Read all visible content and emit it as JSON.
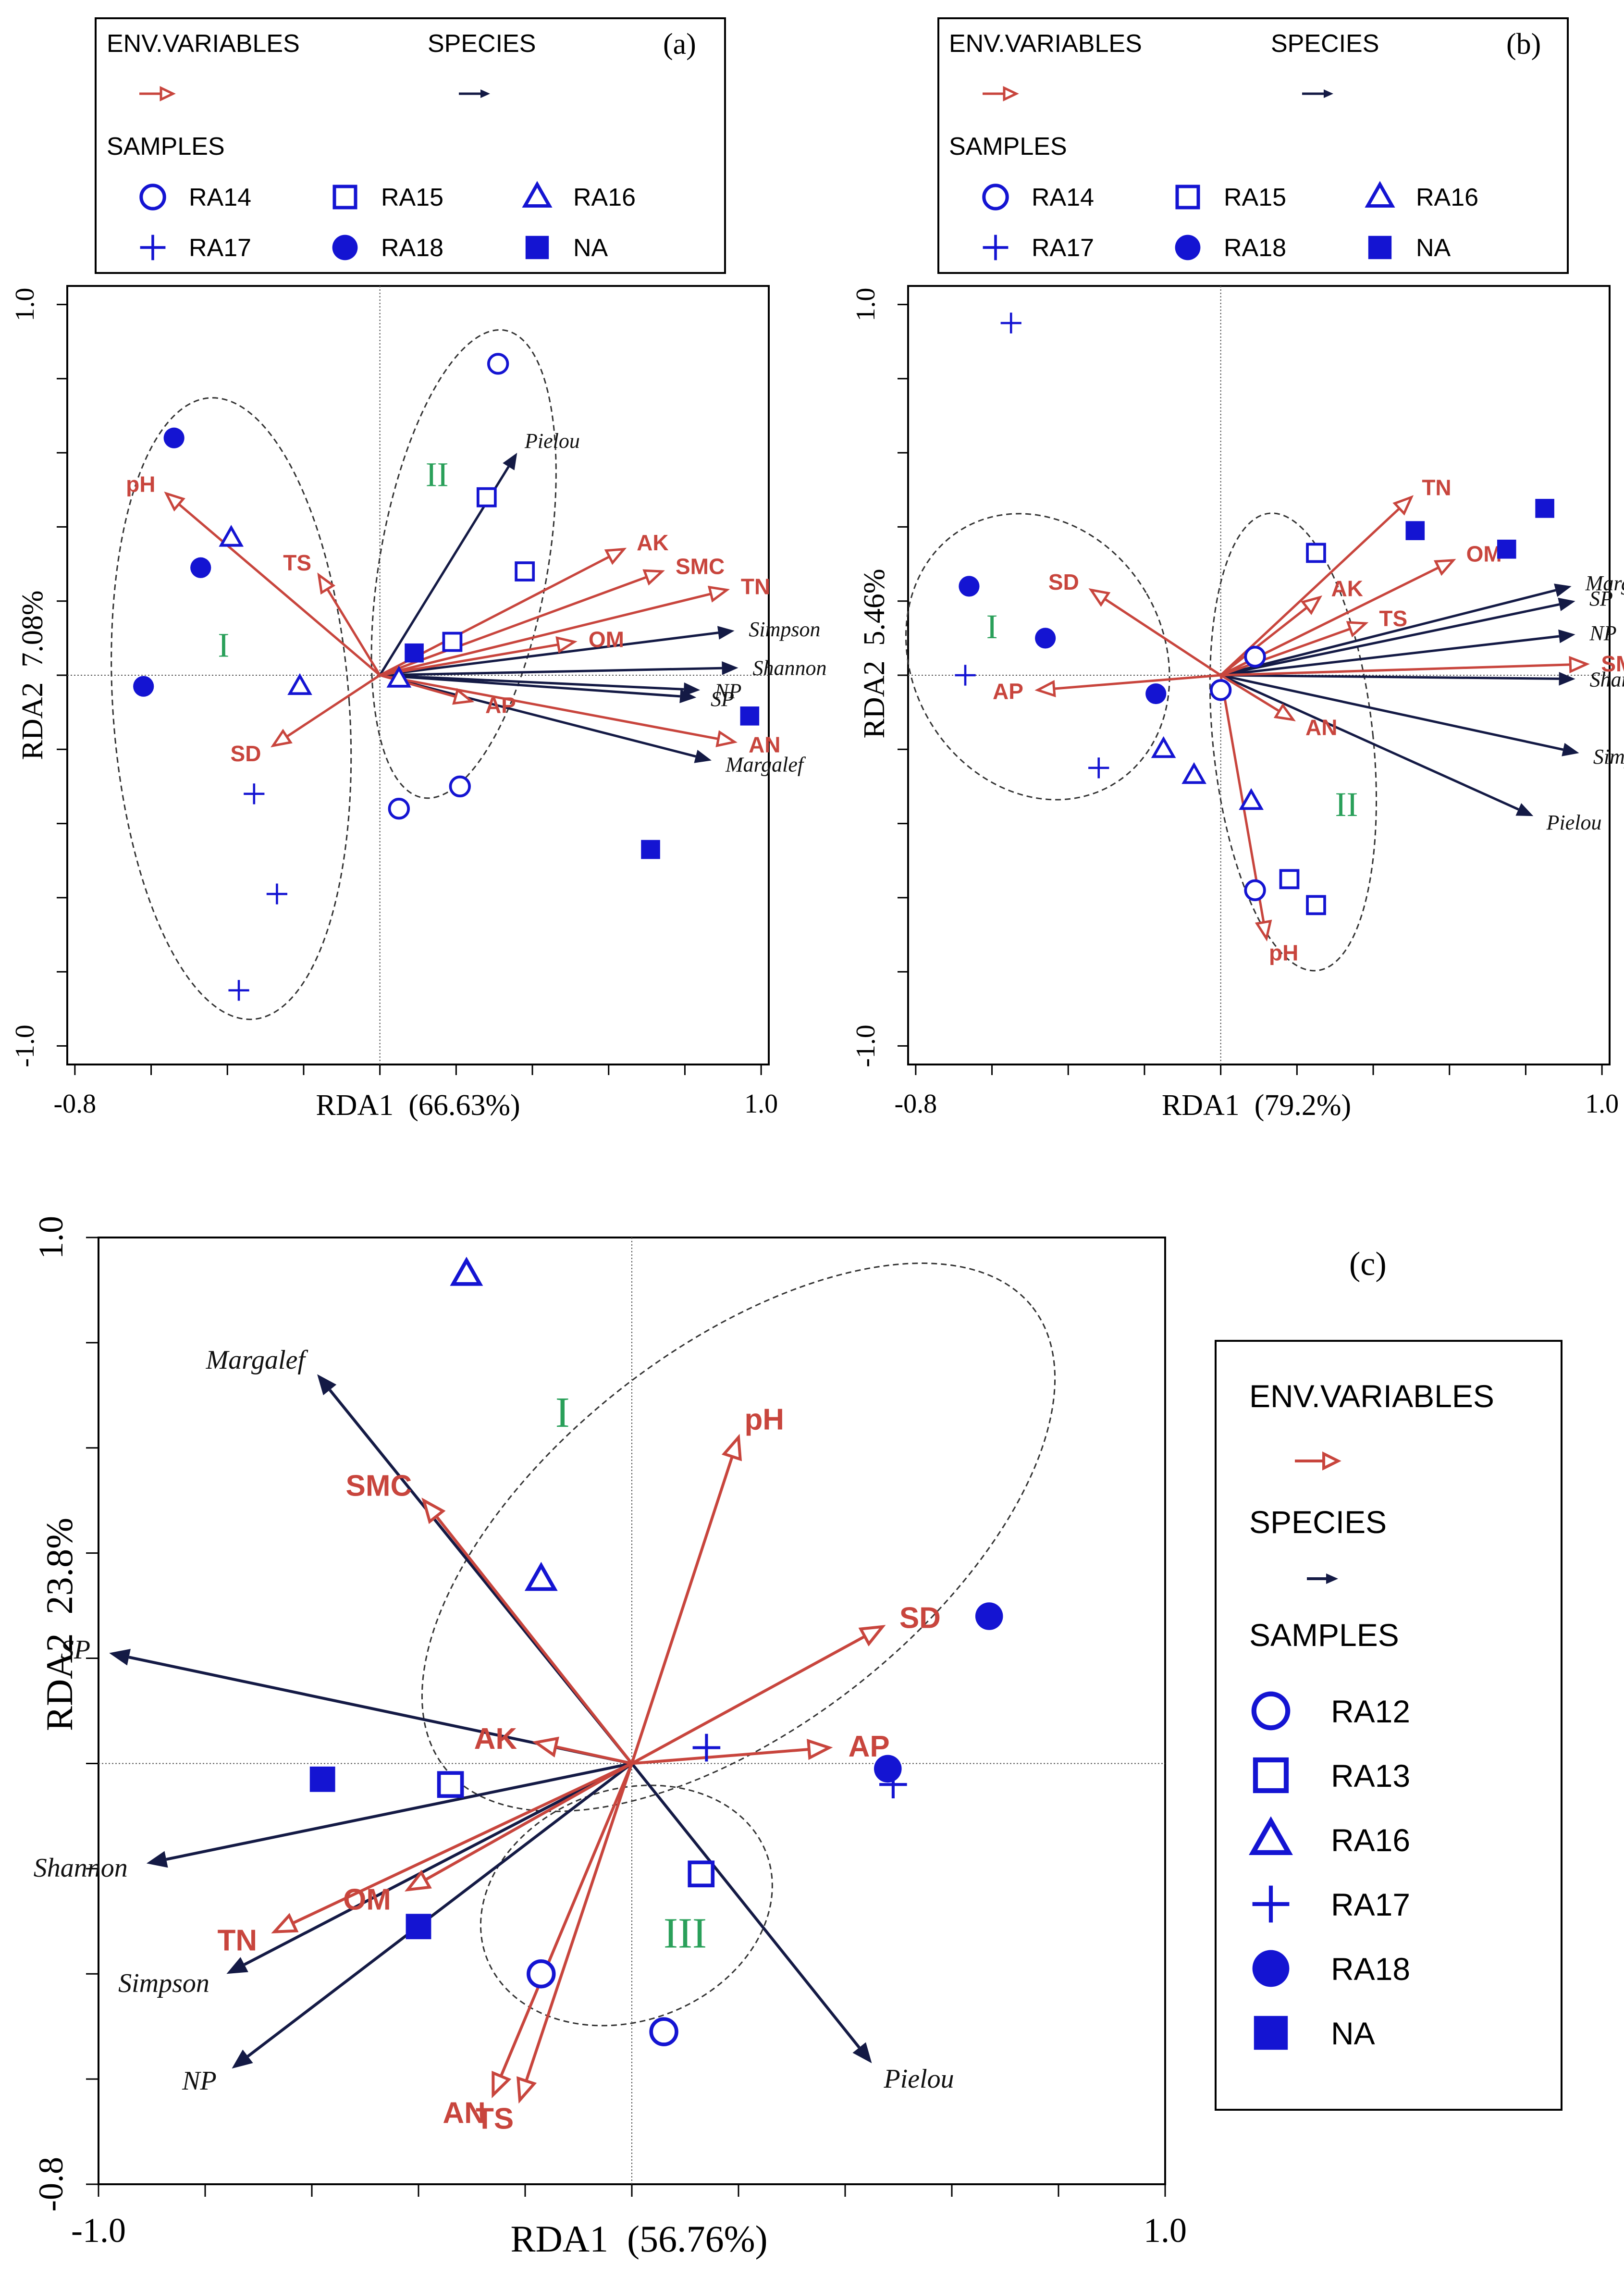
{
  "colors": {
    "env": "#c8453d",
    "species": "#141a45",
    "sample": "#1414d2",
    "group": "#2aa05a",
    "axis": "#000000"
  },
  "chart_data": [
    {
      "type": "scatter",
      "panel_label": "(a)",
      "legend": {
        "env_title": "ENV.VARIABLES",
        "species_title": "SPECIES",
        "samples_title": "SAMPLES",
        "samples": [
          {
            "name": "RA14",
            "marker": "circle-open"
          },
          {
            "name": "RA15",
            "marker": "square-open"
          },
          {
            "name": "RA16",
            "marker": "triangle-open"
          },
          {
            "name": "RA17",
            "marker": "plus"
          },
          {
            "name": "RA18",
            "marker": "circle-filled"
          },
          {
            "name": "NA",
            "marker": "square-filled"
          }
        ]
      },
      "xlabel": "RDA1  (66.63%)",
      "ylabel": "RDA2  7.08%",
      "xlim": [
        -0.82,
        1.02
      ],
      "ylim": [
        -1.05,
        1.05
      ],
      "x_ticks": [
        {
          "value": -0.8,
          "label": "-0.8"
        },
        {
          "value": 1.0,
          "label": "1.0"
        }
      ],
      "y_ticks": [
        {
          "value": 1.0,
          "label": "1.0"
        },
        {
          "value": -1.0,
          "label": "-1.0"
        }
      ],
      "env_variables": [
        {
          "name": "pH",
          "x": -0.56,
          "y": 0.49
        },
        {
          "name": "TS",
          "x": -0.16,
          "y": 0.27
        },
        {
          "name": "SD",
          "x": -0.28,
          "y": -0.19
        },
        {
          "name": "AK",
          "x": 0.64,
          "y": 0.34
        },
        {
          "name": "SMC",
          "x": 0.74,
          "y": 0.28
        },
        {
          "name": "TN",
          "x": 0.91,
          "y": 0.23
        },
        {
          "name": "OM",
          "x": 0.51,
          "y": 0.09
        },
        {
          "name": "AP",
          "x": 0.24,
          "y": -0.07
        },
        {
          "name": "AN",
          "x": 0.93,
          "y": -0.18
        }
      ],
      "species": [
        {
          "name": "Pielou",
          "x": 0.36,
          "y": 0.6
        },
        {
          "name": "Simpson",
          "x": 0.93,
          "y": 0.12
        },
        {
          "name": "Shannon",
          "x": 0.94,
          "y": 0.02
        },
        {
          "name": "NP",
          "x": 0.84,
          "y": -0.04
        },
        {
          "name": "SP",
          "x": 0.83,
          "y": -0.06
        },
        {
          "name": "Margalef",
          "x": 0.87,
          "y": -0.23
        }
      ],
      "samples": [
        {
          "group": "RA14",
          "x": 0.31,
          "y": 0.84
        },
        {
          "group": "RA14",
          "x": 0.05,
          "y": -0.36
        },
        {
          "group": "RA14",
          "x": 0.21,
          "y": -0.3
        },
        {
          "group": "RA15",
          "x": 0.28,
          "y": 0.48
        },
        {
          "group": "RA15",
          "x": 0.38,
          "y": 0.28
        },
        {
          "group": "RA15",
          "x": 0.19,
          "y": 0.09
        },
        {
          "group": "RA16",
          "x": -0.39,
          "y": 0.37
        },
        {
          "group": "RA16",
          "x": -0.21,
          "y": -0.03
        },
        {
          "group": "RA16",
          "x": 0.05,
          "y": -0.01
        },
        {
          "group": "RA17",
          "x": -0.33,
          "y": -0.32
        },
        {
          "group": "RA17",
          "x": -0.27,
          "y": -0.59
        },
        {
          "group": "RA17",
          "x": -0.37,
          "y": -0.85
        },
        {
          "group": "RA18",
          "x": -0.54,
          "y": 0.64
        },
        {
          "group": "RA18",
          "x": -0.47,
          "y": 0.29
        },
        {
          "group": "RA18",
          "x": -0.62,
          "y": -0.03
        },
        {
          "group": "NA",
          "x": 0.09,
          "y": 0.06
        },
        {
          "group": "NA",
          "x": 0.97,
          "y": -0.11
        },
        {
          "group": "NA",
          "x": 0.71,
          "y": -0.47
        }
      ],
      "groups": [
        {
          "label": "I",
          "x": -0.41,
          "y": 0.05
        },
        {
          "label": "II",
          "x": 0.15,
          "y": 0.51
        }
      ],
      "ellipses": [
        {
          "cx": -0.39,
          "cy": -0.09,
          "rx": 0.31,
          "ry": 0.84,
          "angle": -4
        },
        {
          "cx": 0.22,
          "cy": 0.3,
          "rx": 0.22,
          "ry": 0.64,
          "angle": 10
        }
      ]
    },
    {
      "type": "scatter",
      "panel_label": "(b)",
      "legend": {
        "env_title": "ENV.VARIABLES",
        "species_title": "SPECIES",
        "samples_title": "SAMPLES",
        "samples": [
          {
            "name": "RA14",
            "marker": "circle-open"
          },
          {
            "name": "RA15",
            "marker": "square-open"
          },
          {
            "name": "RA16",
            "marker": "triangle-open"
          },
          {
            "name": "RA17",
            "marker": "plus"
          },
          {
            "name": "RA18",
            "marker": "circle-filled"
          },
          {
            "name": "NA",
            "marker": "square-filled"
          }
        ]
      },
      "xlabel": "RDA1  (79.2%)",
      "ylabel": "RDA2  5.46%",
      "xlim": [
        -0.82,
        1.02
      ],
      "ylim": [
        -1.05,
        1.05
      ],
      "x_ticks": [
        {
          "value": -0.8,
          "label": "-0.8"
        },
        {
          "value": 1.0,
          "label": "1.0"
        }
      ],
      "y_ticks": [
        {
          "value": 1.0,
          "label": "1.0"
        },
        {
          "value": -1.0,
          "label": "-1.0"
        }
      ],
      "env_variables": [
        {
          "name": "TN",
          "x": 0.5,
          "y": 0.48
        },
        {
          "name": "OM",
          "x": 0.61,
          "y": 0.31
        },
        {
          "name": "AK",
          "x": 0.26,
          "y": 0.21
        },
        {
          "name": "TS",
          "x": 0.38,
          "y": 0.14
        },
        {
          "name": "SMC",
          "x": 0.96,
          "y": 0.03
        },
        {
          "name": "SD",
          "x": -0.34,
          "y": 0.23
        },
        {
          "name": "AP",
          "x": -0.48,
          "y": -0.04
        },
        {
          "name": "AN",
          "x": 0.19,
          "y": -0.12
        },
        {
          "name": "pH",
          "x": 0.12,
          "y": -0.71
        }
      ],
      "species": [
        {
          "name": "Margalef",
          "x": 0.92,
          "y": 0.24
        },
        {
          "name": "SP",
          "x": 0.93,
          "y": 0.2
        },
        {
          "name": "NP",
          "x": 0.93,
          "y": 0.11
        },
        {
          "name": "Shannon",
          "x": 0.93,
          "y": -0.01
        },
        {
          "name": "Simpson",
          "x": 0.94,
          "y": -0.21
        },
        {
          "name": "Pielou",
          "x": 0.82,
          "y": -0.38
        }
      ],
      "samples": [
        {
          "group": "RA14",
          "x": 0.09,
          "y": 0.05
        },
        {
          "group": "RA14",
          "x": 0.0,
          "y": -0.04
        },
        {
          "group": "RA14",
          "x": 0.09,
          "y": -0.58
        },
        {
          "group": "RA15",
          "x": 0.25,
          "y": 0.33
        },
        {
          "group": "RA15",
          "x": 0.18,
          "y": -0.55
        },
        {
          "group": "RA15",
          "x": 0.25,
          "y": -0.62
        },
        {
          "group": "RA16",
          "x": -0.15,
          "y": -0.2
        },
        {
          "group": "RA16",
          "x": -0.07,
          "y": -0.27
        },
        {
          "group": "RA16",
          "x": 0.08,
          "y": -0.34
        },
        {
          "group": "RA17",
          "x": -0.55,
          "y": 0.95
        },
        {
          "group": "RA17",
          "x": -0.67,
          "y": 0.0
        },
        {
          "group": "RA17",
          "x": -0.32,
          "y": -0.25
        },
        {
          "group": "RA18",
          "x": -0.66,
          "y": 0.24
        },
        {
          "group": "RA18",
          "x": -0.46,
          "y": 0.1
        },
        {
          "group": "RA18",
          "x": -0.17,
          "y": -0.05
        },
        {
          "group": "NA",
          "x": 0.51,
          "y": 0.39
        },
        {
          "group": "NA",
          "x": 0.75,
          "y": 0.34
        },
        {
          "group": "NA",
          "x": 0.85,
          "y": 0.45
        }
      ],
      "groups": [
        {
          "label": "I",
          "x": -0.6,
          "y": 0.1
        },
        {
          "label": "II",
          "x": 0.33,
          "y": -0.38
        }
      ],
      "ellipses": [
        {
          "cx": -0.48,
          "cy": 0.05,
          "rx": 0.33,
          "ry": 0.4,
          "angle": -30
        },
        {
          "cx": 0.19,
          "cy": -0.18,
          "rx": 0.21,
          "ry": 0.62,
          "angle": -6
        }
      ]
    },
    {
      "type": "scatter",
      "panel_label": "(c)",
      "legend": {
        "env_title": "ENV.VARIABLES",
        "species_title": "SPECIES",
        "samples_title": "SAMPLES",
        "samples": [
          {
            "name": "RA12",
            "marker": "circle-open"
          },
          {
            "name": "RA13",
            "marker": "square-open"
          },
          {
            "name": "RA16",
            "marker": "triangle-open"
          },
          {
            "name": "RA17",
            "marker": "plus"
          },
          {
            "name": "RA18",
            "marker": "circle-filled"
          },
          {
            "name": "NA",
            "marker": "square-filled"
          }
        ]
      },
      "xlabel": "RDA1  (56.76%)",
      "ylabel": "RDA2  23.8%",
      "xlim": [
        -1.0,
        1.0
      ],
      "ylim": [
        -0.8,
        1.0
      ],
      "x_ticks": [
        {
          "value": -1.0,
          "label": "-1.0"
        },
        {
          "value": 1.0,
          "label": "1.0"
        }
      ],
      "y_ticks": [
        {
          "value": 1.0,
          "label": "1.0"
        },
        {
          "value": -0.8,
          "label": "-0.8"
        }
      ],
      "env_variables": [
        {
          "name": "pH",
          "x": 0.2,
          "y": 0.62
        },
        {
          "name": "SMC",
          "x": -0.39,
          "y": 0.5
        },
        {
          "name": "SD",
          "x": 0.47,
          "y": 0.26
        },
        {
          "name": "AP",
          "x": 0.37,
          "y": 0.03
        },
        {
          "name": "AK",
          "x": -0.18,
          "y": 0.04
        },
        {
          "name": "TN",
          "x": -0.67,
          "y": -0.32
        },
        {
          "name": "OM",
          "x": -0.42,
          "y": -0.24
        },
        {
          "name": "AN",
          "x": -0.26,
          "y": -0.63
        },
        {
          "name": "TS",
          "x": -0.21,
          "y": -0.64
        }
      ],
      "species": [
        {
          "name": "Margalef",
          "x": -0.59,
          "y": 0.74
        },
        {
          "name": "SP",
          "x": -0.98,
          "y": 0.21
        },
        {
          "name": "Shannon",
          "x": -0.91,
          "y": -0.19
        },
        {
          "name": "Simpson",
          "x": -0.76,
          "y": -0.4
        },
        {
          "name": "NP",
          "x": -0.75,
          "y": -0.58
        },
        {
          "name": "Pielou",
          "x": 0.45,
          "y": -0.57
        }
      ],
      "samples": [
        {
          "group": "RA12",
          "x": -0.17,
          "y": -0.4
        },
        {
          "group": "RA12",
          "x": 0.06,
          "y": -0.51
        },
        {
          "group": "RA13",
          "x": -0.34,
          "y": -0.04
        },
        {
          "group": "RA13",
          "x": 0.13,
          "y": -0.21
        },
        {
          "group": "RA16",
          "x": -0.31,
          "y": 0.93
        },
        {
          "group": "RA16",
          "x": -0.17,
          "y": 0.35
        },
        {
          "group": "RA17",
          "x": 0.14,
          "y": 0.03
        },
        {
          "group": "RA17",
          "x": 0.49,
          "y": -0.04
        },
        {
          "group": "RA18",
          "x": 0.67,
          "y": 0.28
        },
        {
          "group": "RA18",
          "x": 0.48,
          "y": -0.01
        },
        {
          "group": "NA",
          "x": -0.58,
          "y": -0.03
        },
        {
          "group": "NA",
          "x": -0.4,
          "y": -0.31
        }
      ],
      "groups": [
        {
          "label": "I",
          "x": -0.13,
          "y": 0.64
        },
        {
          "label": "III",
          "x": 0.1,
          "y": -0.35
        }
      ],
      "ellipses": [
        {
          "cx": 0.2,
          "cy": 0.43,
          "rx": 0.7,
          "ry": 0.36,
          "angle": -38
        },
        {
          "cx": -0.01,
          "cy": -0.27,
          "rx": 0.28,
          "ry": 0.22,
          "angle": -20
        }
      ]
    }
  ]
}
